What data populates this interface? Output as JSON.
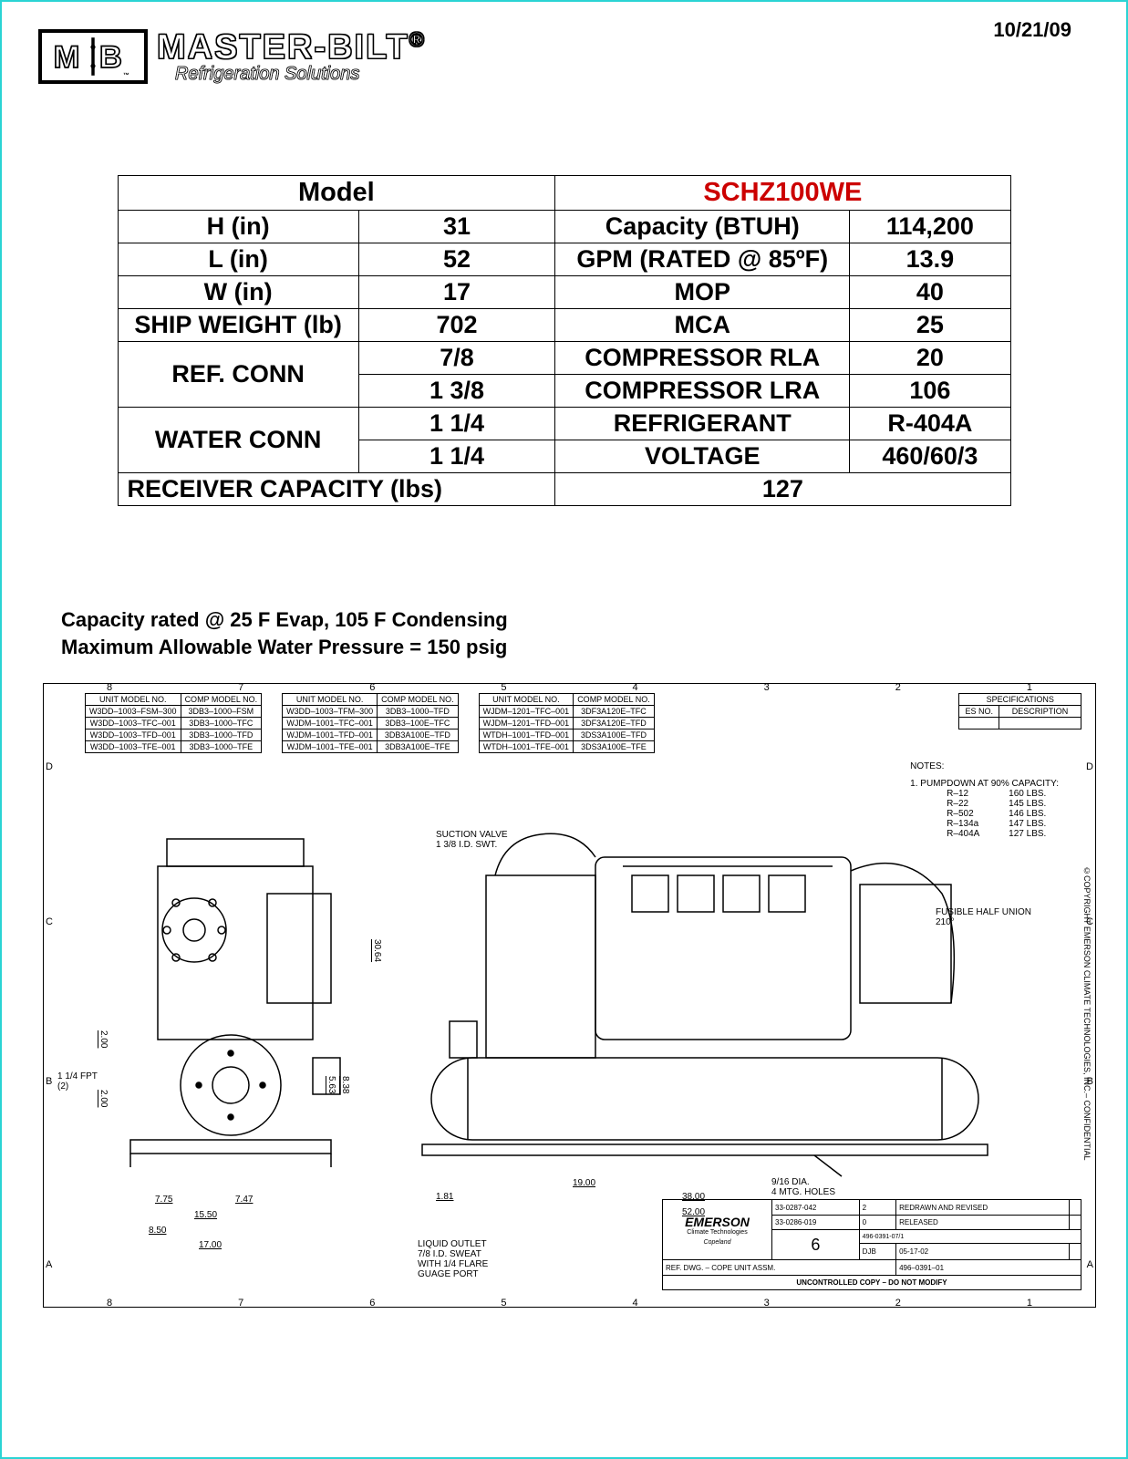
{
  "date": "10/21/09",
  "brand": {
    "box_mb": "M B",
    "name": "MASTER-BILT",
    "trademark": "®",
    "tagline": "Refrigeration Solutions",
    "tm": "™"
  },
  "spec": {
    "model_label": "Model",
    "model_value": "SCHZ100WE",
    "rows_left": [
      {
        "label": "H (in)",
        "val": "31"
      },
      {
        "label": "L (in)",
        "val": "52"
      },
      {
        "label": "W (in)",
        "val": "17"
      },
      {
        "label": "SHIP WEIGHT (lb)",
        "val": "702"
      }
    ],
    "ref_conn_label": "REF. CONN",
    "ref_conn_vals": [
      "7/8",
      "1 3/8"
    ],
    "water_conn_label": "WATER CONN",
    "water_conn_vals": [
      "1 1/4",
      "1 1/4"
    ],
    "rows_right": [
      {
        "label": "Capacity (BTUH)",
        "val": "114,200"
      },
      {
        "label": "GPM (RATED @ 85ºF)",
        "val": "13.9"
      },
      {
        "label": "MOP",
        "val": "40"
      },
      {
        "label": "MCA",
        "val": "25"
      },
      {
        "label": "COMPRESSOR RLA",
        "val": "20"
      },
      {
        "label": "COMPRESSOR LRA",
        "val": "106"
      },
      {
        "label": "REFRIGERANT",
        "val": "R-404A"
      },
      {
        "label": "VOLTAGE",
        "val": "460/60/3"
      }
    ],
    "receiver_label": "RECEIVER CAPACITY (lbs)",
    "receiver_val": "127"
  },
  "footnotes": {
    "line1": "Capacity rated @ 25 F Evap, 105 F Condensing",
    "line2": "Maximum Allowable Water Pressure = 150 psig"
  },
  "drawing": {
    "grid_top": [
      "8",
      "7",
      "6",
      "5",
      "4",
      "3",
      "2",
      "1"
    ],
    "grid_bot": [
      "8",
      "7",
      "6",
      "5",
      "4",
      "3",
      "2",
      "1"
    ],
    "grid_letters": [
      "A",
      "B",
      "C",
      "D"
    ],
    "model_tables": [
      {
        "h1": "UNIT MODEL NO.",
        "h2": "COMP MODEL NO.",
        "rows": [
          [
            "W3DD–1003–FSM–300",
            "3DB3–1000–FSM"
          ],
          [
            "W3DD–1003–TFC–001",
            "3DB3–1000–TFC"
          ],
          [
            "W3DD–1003–TFD–001",
            "3DB3–1000–TFD"
          ],
          [
            "W3DD–1003–TFE–001",
            "3DB3–1000–TFE"
          ]
        ]
      },
      {
        "h1": "UNIT MODEL NO.",
        "h2": "COMP MODEL NO.",
        "rows": [
          [
            "W3DD–1003–TFM–300",
            "3DB3–1000–TFD"
          ],
          [
            "WJDM–1001–TFC–001",
            "3DB3–100E–TFC"
          ],
          [
            "WJDM–1001–TFD–001",
            "3DB3A100E–TFD"
          ],
          [
            "WJDM–1001–TFE–001",
            "3DB3A100E–TFE"
          ]
        ]
      },
      {
        "h1": "UNIT MODEL NO.",
        "h2": "COMP MODEL NO.",
        "rows": [
          [
            "WJDM–1201–TFC–001",
            "3DF3A120E–TFC"
          ],
          [
            "WJDM–1201–TFD–001",
            "3DF3A120E–TFD"
          ],
          [
            "WTDH–1001–TFD–001",
            "3DS3A100E–TFD"
          ],
          [
            "WTDH–1001–TFE–001",
            "3DS3A100E–TFE"
          ]
        ]
      }
    ],
    "specs_header": "SPECIFICATIONS",
    "specs_cols": [
      "ES NO.",
      "DESCRIPTION"
    ],
    "notes_header": "NOTES:",
    "pumpdown_header": "1. PUMPDOWN AT 90% CAPACITY:",
    "pumpdown_rows": [
      [
        "R–12",
        "160 LBS."
      ],
      [
        "R–22",
        "145 LBS."
      ],
      [
        "R–502",
        "146 LBS."
      ],
      [
        "R–134a",
        "147 LBS."
      ],
      [
        "R–404A",
        "127 LBS."
      ]
    ],
    "callouts": {
      "suction": "SUCTION VALVE\n1 3/8 I.D. SWT.",
      "fusible": "FUSIBLE HALF UNION\n210°",
      "liquid": "LIQUID OUTLET\n7/8 I.D. SWEAT\nWITH 1/4 FLARE\nGUAGE PORT",
      "fpt": "1 1/4 FPT\n(2)",
      "mtg": "9/16 DIA.\n4 MTG. HOLES"
    },
    "dims": {
      "d7_75": "7.75",
      "d7_47": "7.47",
      "d15_50": "15.50",
      "d8_50": "8.50",
      "d17_00": "17.00",
      "d2_00a": "2.00",
      "d2_00b": "2.00",
      "d5_63": "5.63",
      "d8_38": "8.38",
      "d30_64": "30.64",
      "d1_81": "1.81",
      "d19_00": "19.00",
      "d38_00": "38.00",
      "d52_00": "52.00"
    },
    "title_block": {
      "mfr": "EMERSON",
      "mfr_sub": "Climate Technologies",
      "brand": "Copeland",
      "ref_dwg": "REF. DWG. – COPE UNIT ASSM.",
      "dwg_no": "496–0391–01",
      "djb": "DJB",
      "rel1": "33-0287-042",
      "rel1b": "REDRAWN AND REVISED",
      "rel2": "33-0286-019",
      "rel2b": "RELEASED",
      "six": "6",
      "fmt": "496-0391-07/1",
      "date": "05-17-02",
      "uncontrolled": "UNCONTROLLED COPY – DO NOT MODIFY"
    },
    "copyright": "©COPYRIGHT EMERSON CLIMATE TECHNOLOGIES, INC.– CONFIDENTIAL"
  },
  "colors": {
    "frame": "#2ad4d4",
    "accent": "#c00000",
    "text": "#000000",
    "bg": "#ffffff"
  }
}
